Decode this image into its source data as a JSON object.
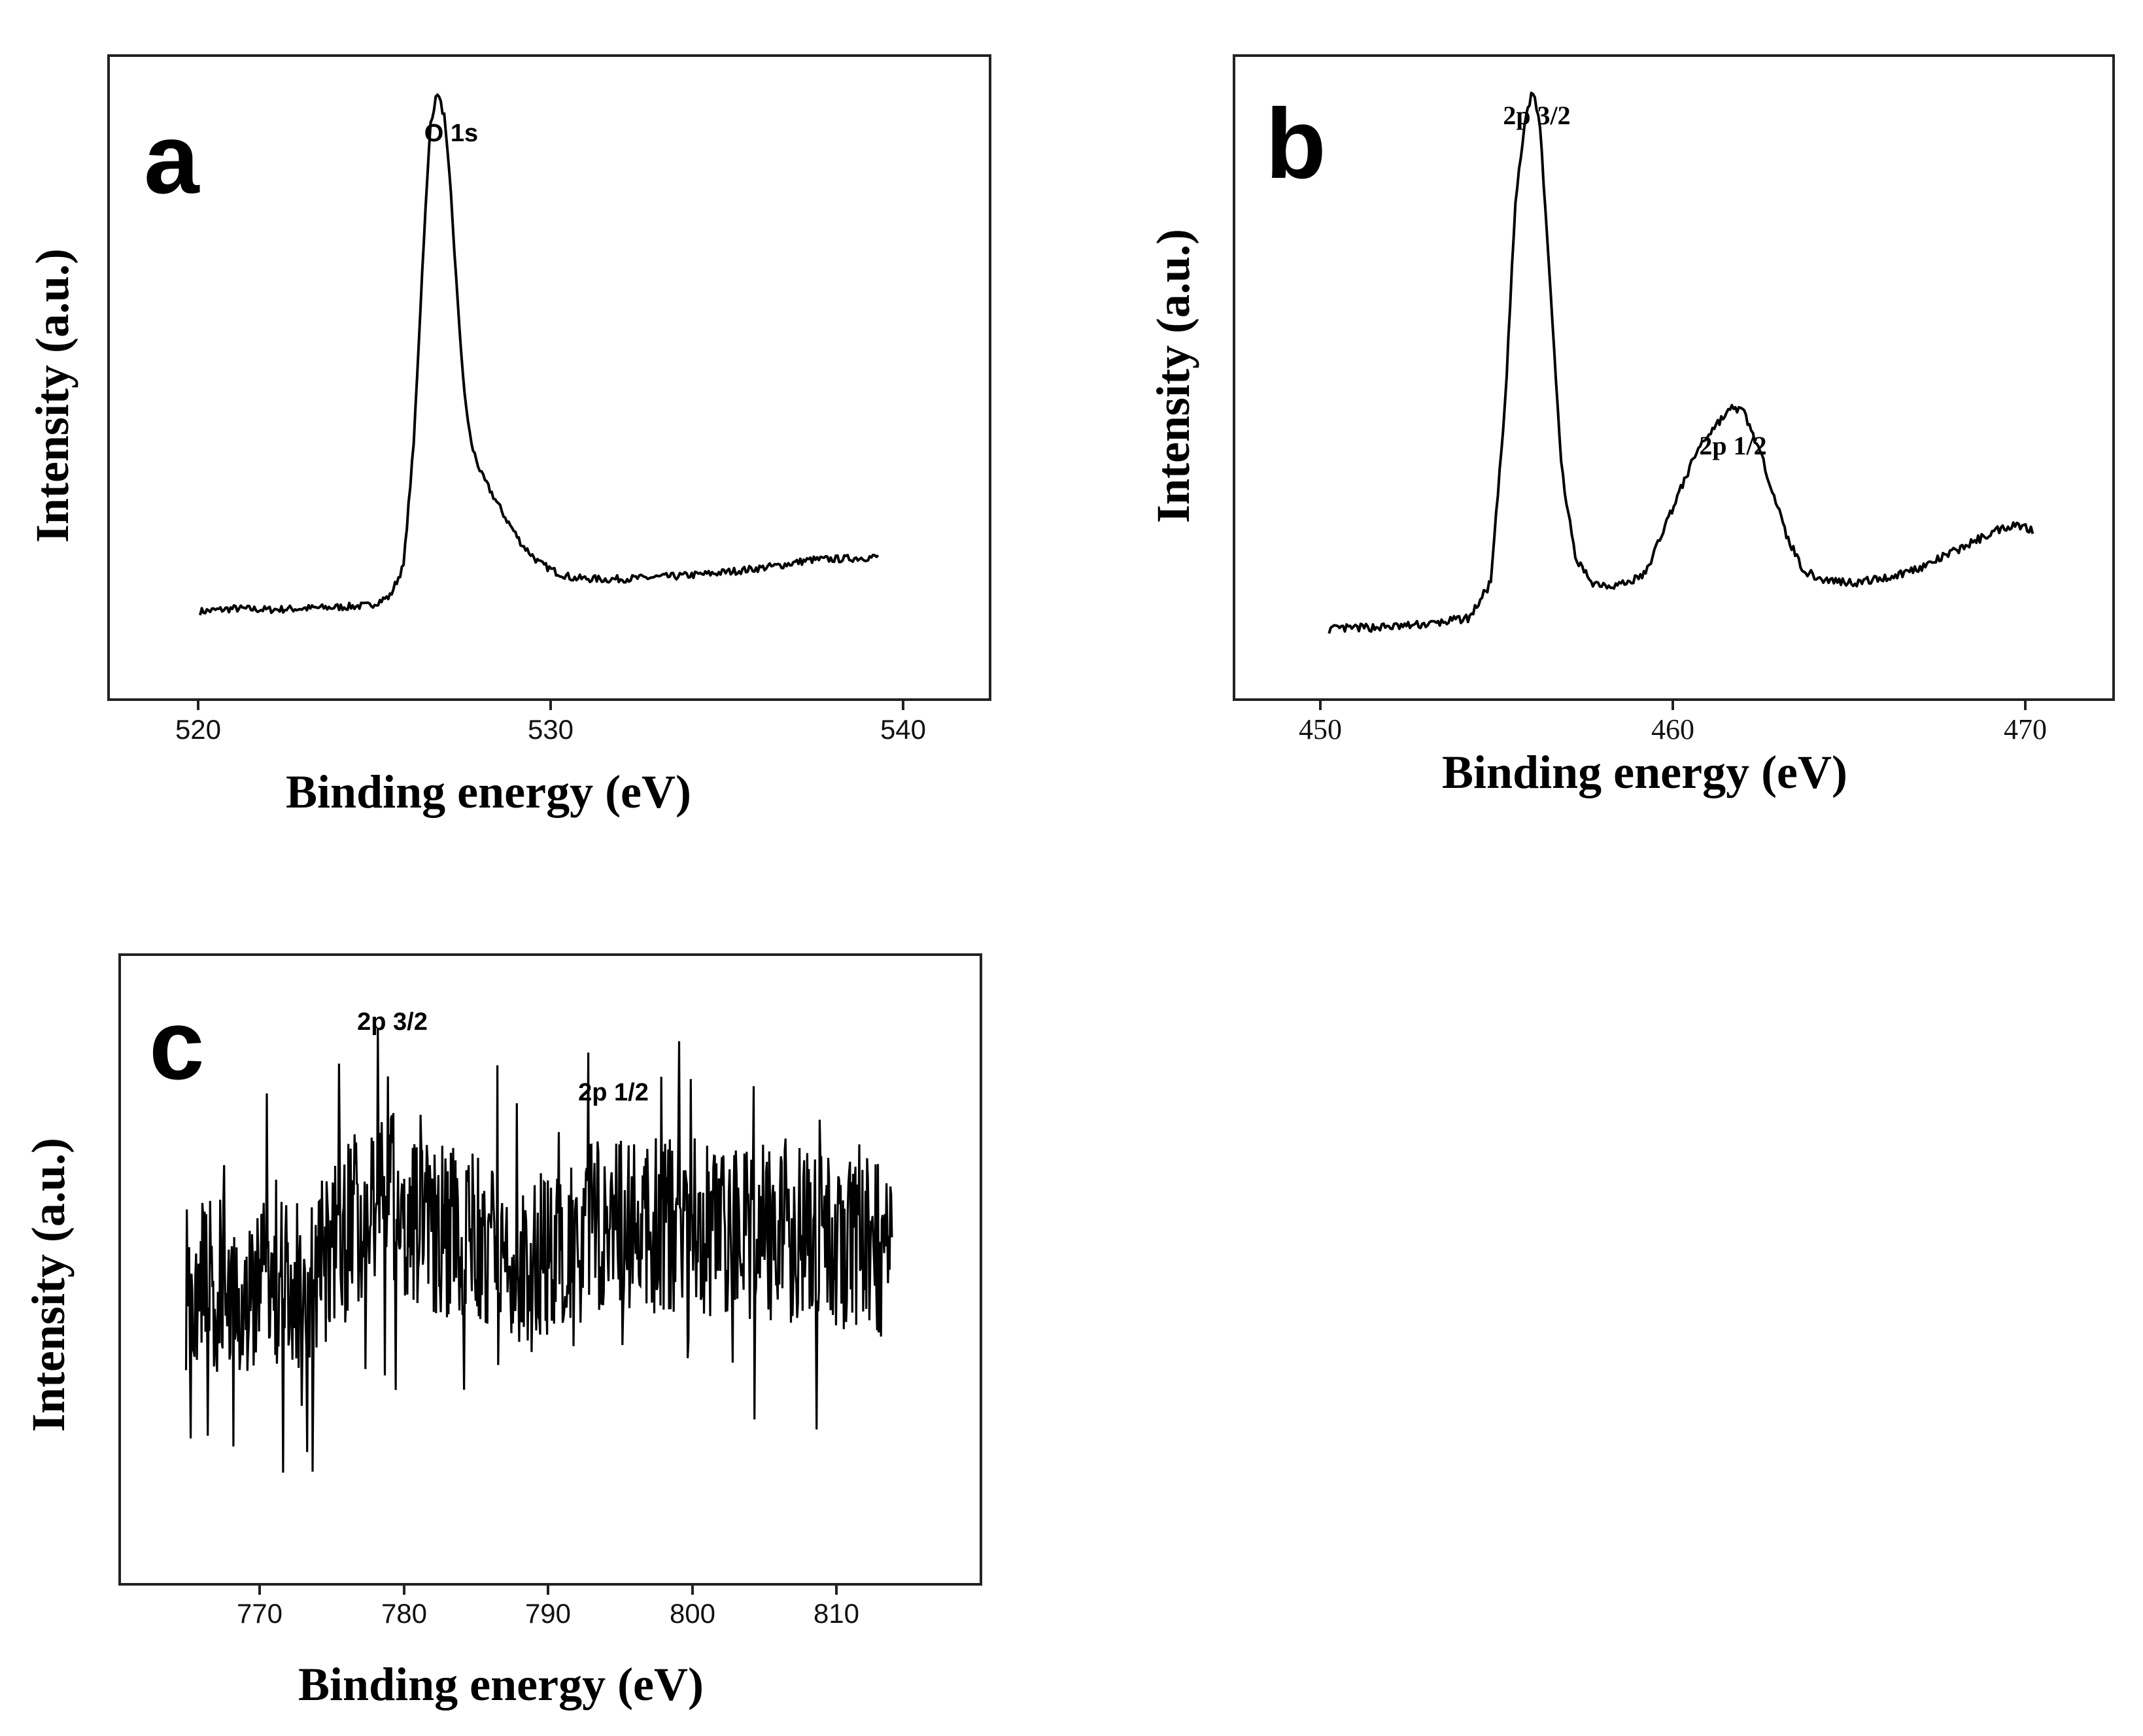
{
  "chart_data": [
    {
      "panel": "a",
      "type": "line",
      "xlabel": "Binding energy (eV)",
      "ylabel": "Intensity (a.u.)",
      "xlim": [
        517.3,
        543.3
      ],
      "ylim": [
        0,
        1.06
      ],
      "xticks": [
        520,
        530,
        540
      ],
      "tick_labels": [
        "520",
        "530",
        "540"
      ],
      "annotations": [
        {
          "text": "O 1s",
          "x": 527.1
        }
      ],
      "series": [
        {
          "name": "O 1s",
          "x": [
            520,
            521,
            522,
            523,
            524,
            525,
            525.6,
            526.0,
            526.3,
            526.6,
            526.8,
            527.0,
            527.2,
            527.4,
            527.6,
            527.8,
            528.0,
            528.3,
            528.6,
            529.0,
            529.5,
            530.0,
            530.5,
            531.0,
            532.0,
            533.0,
            534.0,
            535.0,
            536.0,
            537.0,
            538.0,
            539.0,
            540.0
          ],
          "values": [
            0.145,
            0.15,
            0.148,
            0.15,
            0.152,
            0.155,
            0.17,
            0.22,
            0.42,
            0.76,
            0.95,
            1.0,
            0.96,
            0.83,
            0.65,
            0.5,
            0.42,
            0.37,
            0.34,
            0.3,
            0.255,
            0.225,
            0.21,
            0.2,
            0.198,
            0.2,
            0.203,
            0.207,
            0.213,
            0.22,
            0.23,
            0.232,
            0.235
          ]
        }
      ]
    },
    {
      "panel": "b",
      "type": "line",
      "xlabel": "Binding energy (eV)",
      "ylabel": "Intensity (a.u.)",
      "xlim": [
        447.3,
        472.3
      ],
      "ylim": [
        0,
        1.1
      ],
      "xticks": [
        450,
        460,
        470
      ],
      "tick_labels": [
        "450",
        "460",
        "470"
      ],
      "annotations": [
        {
          "text": "2p 3/2",
          "x": 455.8
        },
        {
          "text": "2p 1/2",
          "x": 461.6
        }
      ],
      "series": [
        {
          "name": "2p",
          "x": [
            450,
            451,
            452,
            453,
            454,
            454.6,
            455.0,
            455.3,
            455.6,
            455.8,
            456.0,
            456.3,
            456.6,
            457.0,
            457.5,
            458.0,
            458.5,
            459.0,
            459.5,
            460.0,
            460.5,
            461.0,
            461.5,
            461.8,
            462.2,
            462.6,
            463.0,
            463.5,
            464.0,
            465.0,
            466.0,
            467.0,
            468.0,
            469.0,
            469.5,
            470.0
          ],
          "values": [
            0.12,
            0.123,
            0.125,
            0.13,
            0.14,
            0.2,
            0.5,
            0.85,
            1.0,
            1.04,
            0.98,
            0.7,
            0.4,
            0.24,
            0.2,
            0.195,
            0.2,
            0.215,
            0.29,
            0.36,
            0.43,
            0.47,
            0.5,
            0.49,
            0.43,
            0.36,
            0.28,
            0.22,
            0.205,
            0.2,
            0.21,
            0.23,
            0.26,
            0.29,
            0.3,
            0.29
          ]
        }
      ]
    },
    {
      "panel": "c",
      "type": "line",
      "xlabel": "Binding energy (eV)",
      "ylabel": "Intensity (a.u.)",
      "xlim": [
        760.3,
        821.3
      ],
      "ylim": [
        0,
        1.0
      ],
      "xticks": [
        770,
        780,
        790,
        800,
        810
      ],
      "tick_labels": [
        "770",
        "780",
        "790",
        "800",
        "810"
      ],
      "annotations": [
        {
          "text": "2p 3/2",
          "x": 779.2
        },
        {
          "text": "2p 1/2",
          "x": 794.5
        }
      ],
      "series": [
        {
          "name": "2p (noisy)",
          "x_start": 765,
          "x_end": 815,
          "baseline_x": [
            765,
            770,
            774,
            776,
            778,
            779.5,
            781,
            785,
            789,
            794,
            800,
            805,
            810,
            815
          ],
          "baseline_y": [
            0.48,
            0.47,
            0.48,
            0.55,
            0.6,
            0.62,
            0.57,
            0.55,
            0.5,
            0.57,
            0.57,
            0.56,
            0.55,
            0.53
          ],
          "noise_amplitude": 0.14
        }
      ]
    }
  ],
  "panels": {
    "a": {
      "letter": "a",
      "peak1": "O 1s",
      "xtitle": "Binding energy (eV)",
      "ytitle": "Intensity (a.u.)",
      "ticks": [
        "520",
        "530",
        "540"
      ]
    },
    "b": {
      "letter": "b",
      "peak1": "2p 3/2",
      "peak2": "2p 1/2",
      "xtitle": "Binding energy (eV)",
      "ytitle": "Intensity (a.u.)",
      "ticks": [
        "450",
        "460",
        "470"
      ]
    },
    "c": {
      "letter": "c",
      "peak1": "2p 3/2",
      "peak2": "2p 1/2",
      "xtitle": "Binding energy (eV)",
      "ytitle": "Intensity (a.u.)",
      "ticks": [
        "770",
        "780",
        "790",
        "800",
        "810"
      ]
    }
  }
}
